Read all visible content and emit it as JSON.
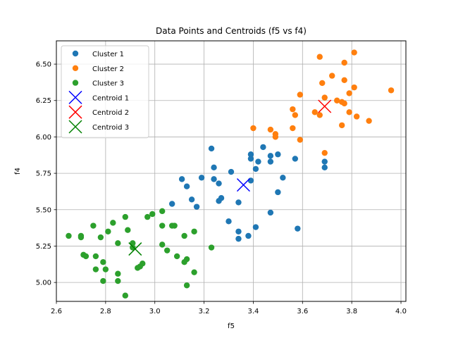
{
  "chart_data": {
    "type": "scatter",
    "title": "Data Points and Centroids (f5 vs f4)",
    "xlabel": "f5",
    "ylabel": "f4",
    "xlim": [
      2.6,
      4.02
    ],
    "ylim": [
      4.87,
      6.66
    ],
    "xticks": [
      2.6,
      2.8,
      3.0,
      3.2,
      3.4,
      3.6,
      3.8,
      4.0
    ],
    "xtick_labels": [
      "2.6",
      "2.8",
      "3.0",
      "3.2",
      "3.4",
      "3.6",
      "3.8",
      "4.0"
    ],
    "yticks": [
      5.0,
      5.25,
      5.5,
      5.75,
      6.0,
      6.25,
      6.5
    ],
    "ytick_labels": [
      "5.00",
      "5.25",
      "5.50",
      "5.75",
      "6.00",
      "6.25",
      "6.50"
    ],
    "grid": true,
    "legend_position": "top-left",
    "series": [
      {
        "name": "Cluster 1",
        "marker": "circle",
        "color": "#1f77b4",
        "points": [
          [
            3.23,
            5.92
          ],
          [
            3.24,
            5.79
          ],
          [
            3.26,
            5.68
          ],
          [
            3.24,
            5.71
          ],
          [
            3.19,
            5.72
          ],
          [
            3.11,
            5.71
          ],
          [
            3.13,
            5.66
          ],
          [
            3.07,
            5.54
          ],
          [
            3.15,
            5.57
          ],
          [
            3.17,
            5.52
          ],
          [
            3.27,
            5.58
          ],
          [
            3.26,
            5.56
          ],
          [
            3.31,
            5.76
          ],
          [
            3.34,
            5.55
          ],
          [
            3.3,
            5.42
          ],
          [
            3.34,
            5.35
          ],
          [
            3.34,
            5.3
          ],
          [
            3.38,
            5.32
          ],
          [
            3.39,
            5.7
          ],
          [
            3.39,
            5.85
          ],
          [
            3.39,
            5.88
          ],
          [
            3.41,
            5.78
          ],
          [
            3.42,
            5.83
          ],
          [
            3.44,
            5.93
          ],
          [
            3.47,
            5.87
          ],
          [
            3.47,
            5.83
          ],
          [
            3.5,
            5.88
          ],
          [
            3.41,
            5.38
          ],
          [
            3.47,
            5.48
          ],
          [
            3.5,
            5.62
          ],
          [
            3.52,
            5.72
          ],
          [
            3.57,
            5.85
          ],
          [
            3.58,
            5.37
          ],
          [
            3.69,
            5.83
          ],
          [
            3.69,
            5.79
          ]
        ]
      },
      {
        "name": "Cluster 2",
        "marker": "circle",
        "color": "#ff7f0e",
        "points": [
          [
            3.4,
            6.06
          ],
          [
            3.47,
            6.05
          ],
          [
            3.49,
            6.0
          ],
          [
            3.49,
            6.02
          ],
          [
            3.56,
            6.19
          ],
          [
            3.56,
            6.06
          ],
          [
            3.57,
            6.15
          ],
          [
            3.59,
            6.29
          ],
          [
            3.59,
            5.98
          ],
          [
            3.65,
            6.17
          ],
          [
            3.67,
            6.55
          ],
          [
            3.68,
            6.37
          ],
          [
            3.67,
            6.15
          ],
          [
            3.69,
            6.27
          ],
          [
            3.72,
            6.42
          ],
          [
            3.69,
            5.89
          ],
          [
            3.74,
            6.25
          ],
          [
            3.76,
            6.24
          ],
          [
            3.77,
            6.23
          ],
          [
            3.77,
            6.39
          ],
          [
            3.77,
            6.51
          ],
          [
            3.76,
            6.08
          ],
          [
            3.79,
            6.3
          ],
          [
            3.79,
            6.17
          ],
          [
            3.81,
            6.34
          ],
          [
            3.81,
            6.58
          ],
          [
            3.82,
            6.14
          ],
          [
            3.87,
            6.11
          ],
          [
            3.96,
            6.32
          ]
        ]
      },
      {
        "name": "Cluster 3",
        "marker": "circle",
        "color": "#2ca02c",
        "points": [
          [
            2.65,
            5.32
          ],
          [
            2.7,
            5.31
          ],
          [
            2.7,
            5.32
          ],
          [
            2.71,
            5.19
          ],
          [
            2.72,
            5.18
          ],
          [
            2.75,
            5.39
          ],
          [
            2.76,
            5.18
          ],
          [
            2.76,
            5.09
          ],
          [
            2.78,
            5.31
          ],
          [
            2.79,
            5.14
          ],
          [
            2.79,
            5.01
          ],
          [
            2.8,
            5.09
          ],
          [
            2.81,
            5.35
          ],
          [
            2.83,
            5.41
          ],
          [
            2.85,
            5.27
          ],
          [
            2.85,
            5.06
          ],
          [
            2.85,
            5.01
          ],
          [
            2.88,
            5.45
          ],
          [
            2.88,
            4.91
          ],
          [
            2.89,
            5.36
          ],
          [
            2.91,
            5.27
          ],
          [
            2.91,
            5.24
          ],
          [
            2.93,
            5.1
          ],
          [
            2.94,
            5.11
          ],
          [
            2.95,
            5.13
          ],
          [
            2.97,
            5.45
          ],
          [
            2.99,
            5.47
          ],
          [
            3.03,
            5.49
          ],
          [
            3.03,
            5.39
          ],
          [
            3.03,
            5.26
          ],
          [
            3.05,
            5.22
          ],
          [
            3.07,
            5.39
          ],
          [
            3.08,
            5.39
          ],
          [
            3.09,
            5.18
          ],
          [
            3.12,
            5.14
          ],
          [
            3.12,
            5.32
          ],
          [
            3.13,
            5.16
          ],
          [
            3.13,
            4.98
          ],
          [
            3.16,
            5.35
          ],
          [
            3.16,
            5.07
          ],
          [
            3.23,
            5.24
          ]
        ]
      }
    ],
    "centroids": [
      {
        "name": "Centroid 1",
        "marker": "x",
        "color": "#0000ff",
        "x": 3.36,
        "y": 5.67
      },
      {
        "name": "Centroid 2",
        "marker": "x",
        "color": "#ff0000",
        "x": 3.69,
        "y": 6.21
      },
      {
        "name": "Centroid 3",
        "marker": "x",
        "color": "#008000",
        "x": 2.92,
        "y": 5.23
      }
    ]
  }
}
